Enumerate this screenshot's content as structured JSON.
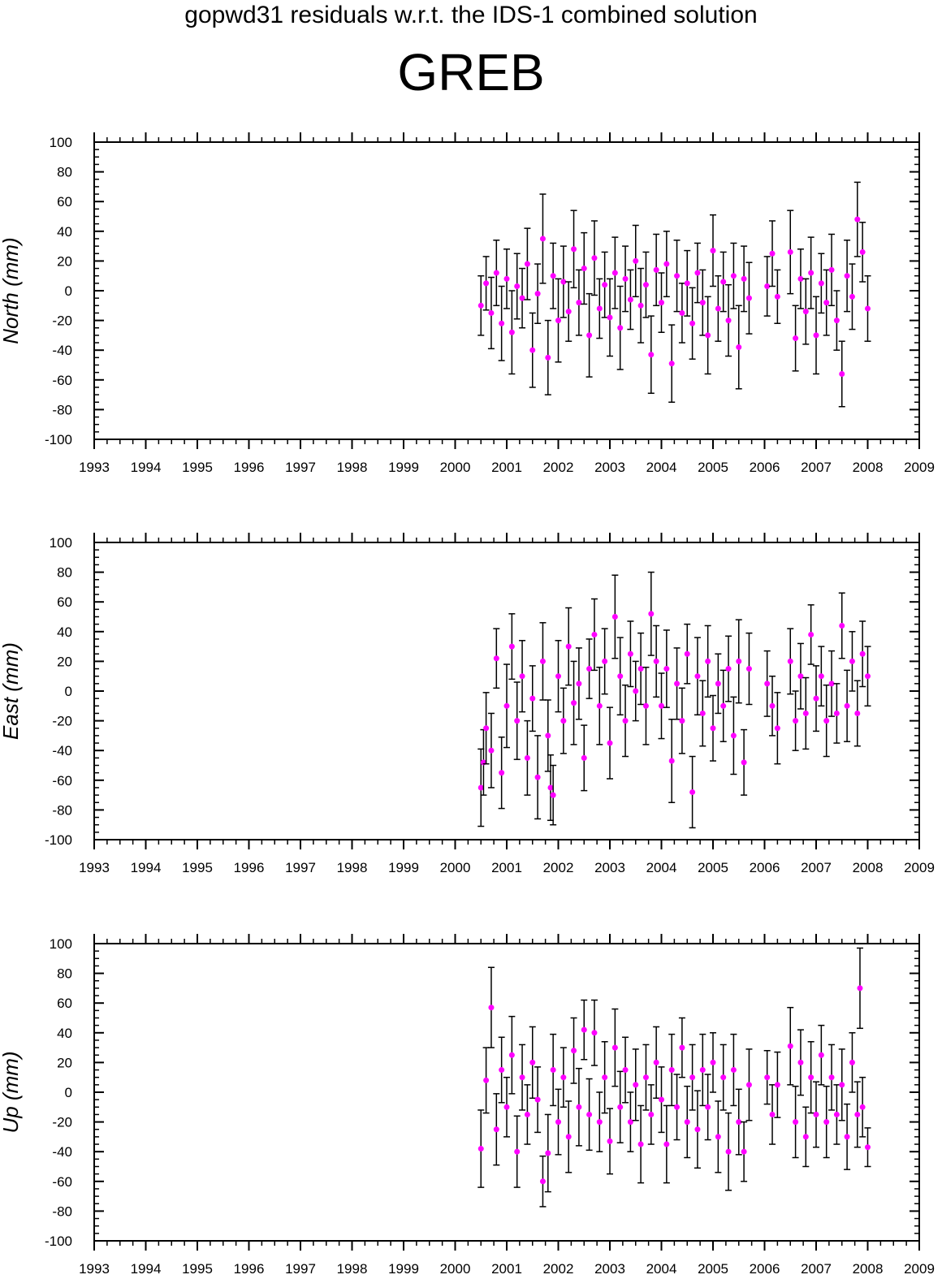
{
  "header": {
    "suptitle": "gopwd31 residuals w.r.t. the IDS-1 combined solution",
    "title": "GREB"
  },
  "colors": {
    "point": "#ff00ff",
    "errorbar": "#000000",
    "axes": "#000000"
  },
  "chart_data": [
    {
      "type": "scatter",
      "ylabel": "North (mm)",
      "xlim": [
        1993,
        2009
      ],
      "ylim": [
        -100,
        100
      ],
      "x_ticks": [
        "1993",
        "1994",
        "1995",
        "1996",
        "1997",
        "1998",
        "1999",
        "2000",
        "2001",
        "2002",
        "2003",
        "2004",
        "2005",
        "2006",
        "2007",
        "2008",
        "2009"
      ],
      "y_ticks": [
        "100",
        "80",
        "60",
        "40",
        "20",
        "0",
        "-20",
        "-40",
        "-60",
        "-80",
        "-100"
      ],
      "grid": false,
      "series": [
        {
          "x": [
            2000.5,
            2000.6,
            2000.7,
            2000.8,
            2000.9,
            2001.0,
            2001.1,
            2001.2,
            2001.3,
            2001.4,
            2001.5,
            2001.6,
            2001.7,
            2001.8,
            2001.9,
            2002.0,
            2002.1,
            2002.2,
            2002.3,
            2002.4,
            2002.5,
            2002.6,
            2002.7,
            2002.8,
            2002.9,
            2003.0,
            2003.1,
            2003.2,
            2003.3,
            2003.4,
            2003.5,
            2003.6,
            2003.7,
            2003.8,
            2003.9,
            2004.0,
            2004.1,
            2004.2,
            2004.3,
            2004.4,
            2004.5,
            2004.6,
            2004.7,
            2004.8,
            2004.9,
            2005.0,
            2005.1,
            2005.2,
            2005.3,
            2005.4,
            2005.5,
            2005.6,
            2005.7,
            2006.05,
            2006.15,
            2006.25,
            2006.5,
            2006.6,
            2006.7,
            2006.8,
            2006.9,
            2007.0,
            2007.1,
            2007.2,
            2007.3,
            2007.4,
            2007.5,
            2007.6,
            2007.7,
            2007.8,
            2007.9,
            2008.0
          ],
          "y": [
            -10,
            5,
            -15,
            12,
            -22,
            8,
            -28,
            3,
            -5,
            18,
            -40,
            -2,
            35,
            -45,
            10,
            -20,
            6,
            -14,
            28,
            -8,
            15,
            -30,
            22,
            -12,
            4,
            -18,
            12,
            -25,
            8,
            -6,
            20,
            -10,
            4,
            -43,
            14,
            -8,
            18,
            -49,
            10,
            -15,
            5,
            -22,
            12,
            -8,
            -30,
            27,
            -12,
            6,
            -20,
            10,
            -38,
            8,
            -5,
            3,
            25,
            -4,
            26,
            -32,
            8,
            -14,
            12,
            -30,
            5,
            -8,
            14,
            -20,
            -56,
            10,
            -4,
            48,
            26,
            -12
          ],
          "err": [
            20,
            18,
            24,
            22,
            25,
            20,
            28,
            22,
            20,
            24,
            25,
            20,
            30,
            25,
            22,
            28,
            24,
            20,
            26,
            22,
            24,
            28,
            25,
            20,
            22,
            26,
            24,
            28,
            22,
            20,
            24,
            25,
            22,
            26,
            24,
            20,
            22,
            26,
            24,
            20,
            22,
            24,
            20,
            22,
            26,
            24,
            22,
            20,
            24,
            22,
            28,
            22,
            24,
            20,
            22,
            18,
            28,
            22,
            20,
            22,
            24,
            26,
            20,
            22,
            24,
            20,
            22,
            24,
            22,
            25,
            20,
            22
          ]
        }
      ]
    },
    {
      "type": "scatter",
      "ylabel": "East (mm)",
      "xlim": [
        1993,
        2009
      ],
      "ylim": [
        -100,
        100
      ],
      "x_ticks": [
        "1993",
        "1994",
        "1995",
        "1996",
        "1997",
        "1998",
        "1999",
        "2000",
        "2001",
        "2002",
        "2003",
        "2004",
        "2005",
        "2006",
        "2007",
        "2008",
        "2009"
      ],
      "y_ticks": [
        "100",
        "80",
        "60",
        "40",
        "20",
        "0",
        "-20",
        "-40",
        "-60",
        "-80",
        "-100"
      ],
      "grid": false,
      "series": [
        {
          "x": [
            2000.5,
            2000.55,
            2000.6,
            2000.7,
            2000.8,
            2000.9,
            2001.0,
            2001.1,
            2001.2,
            2001.3,
            2001.4,
            2001.5,
            2001.6,
            2001.7,
            2001.8,
            2001.85,
            2001.9,
            2002.0,
            2002.1,
            2002.2,
            2002.3,
            2002.4,
            2002.5,
            2002.6,
            2002.7,
            2002.8,
            2002.9,
            2003.0,
            2003.1,
            2003.2,
            2003.3,
            2003.4,
            2003.5,
            2003.6,
            2003.7,
            2003.8,
            2003.9,
            2004.0,
            2004.1,
            2004.2,
            2004.3,
            2004.4,
            2004.5,
            2004.6,
            2004.7,
            2004.8,
            2004.9,
            2005.0,
            2005.1,
            2005.2,
            2005.3,
            2005.4,
            2005.5,
            2005.6,
            2005.7,
            2006.05,
            2006.15,
            2006.25,
            2006.5,
            2006.6,
            2006.7,
            2006.8,
            2006.9,
            2007.0,
            2007.1,
            2007.2,
            2007.3,
            2007.4,
            2007.5,
            2007.6,
            2007.7,
            2007.8,
            2007.9,
            2008.0
          ],
          "y": [
            -65,
            -48,
            -25,
            -40,
            22,
            -55,
            -10,
            30,
            -20,
            10,
            -45,
            -5,
            -58,
            20,
            -30,
            -65,
            -70,
            10,
            -20,
            30,
            -8,
            5,
            -45,
            15,
            38,
            -10,
            20,
            -35,
            50,
            10,
            -20,
            25,
            0,
            15,
            -10,
            52,
            20,
            -10,
            15,
            -47,
            5,
            -20,
            25,
            -68,
            10,
            -15,
            20,
            -25,
            5,
            -10,
            15,
            -30,
            20,
            -48,
            15,
            5,
            -10,
            -25,
            20,
            -20,
            10,
            -15,
            38,
            -5,
            10,
            -20,
            5,
            -15,
            44,
            -10,
            20,
            -15,
            25,
            10
          ],
          "err": [
            26,
            22,
            24,
            25,
            20,
            24,
            28,
            22,
            26,
            24,
            25,
            22,
            28,
            26,
            24,
            22,
            20,
            24,
            22,
            26,
            28,
            24,
            22,
            20,
            24,
            26,
            22,
            24,
            28,
            26,
            24,
            22,
            20,
            24,
            26,
            28,
            24,
            22,
            26,
            28,
            24,
            22,
            20,
            24,
            26,
            22,
            24,
            22,
            20,
            24,
            22,
            26,
            28,
            22,
            24,
            22,
            20,
            24,
            22,
            20,
            22,
            24,
            20,
            22,
            20,
            24,
            22,
            20,
            22,
            24,
            20,
            22,
            22,
            20
          ]
        }
      ]
    },
    {
      "type": "scatter",
      "ylabel": "Up (mm)",
      "xlim": [
        1993,
        2009
      ],
      "ylim": [
        -100,
        100
      ],
      "x_ticks": [
        "1993",
        "1994",
        "1995",
        "1996",
        "1997",
        "1998",
        "1999",
        "2000",
        "2001",
        "2002",
        "2003",
        "2004",
        "2005",
        "2006",
        "2007",
        "2008",
        "2009"
      ],
      "y_ticks": [
        "100",
        "80",
        "60",
        "40",
        "20",
        "0",
        "-20",
        "-40",
        "-60",
        "-80",
        "-100"
      ],
      "grid": false,
      "series": [
        {
          "x": [
            2000.5,
            2000.6,
            2000.7,
            2000.8,
            2000.9,
            2001.0,
            2001.1,
            2001.2,
            2001.3,
            2001.4,
            2001.5,
            2001.6,
            2001.7,
            2001.8,
            2001.9,
            2002.0,
            2002.1,
            2002.2,
            2002.3,
            2002.4,
            2002.5,
            2002.6,
            2002.7,
            2002.8,
            2002.9,
            2003.0,
            2003.1,
            2003.2,
            2003.3,
            2003.4,
            2003.5,
            2003.6,
            2003.7,
            2003.8,
            2003.9,
            2004.0,
            2004.1,
            2004.2,
            2004.3,
            2004.4,
            2004.5,
            2004.6,
            2004.7,
            2004.8,
            2004.9,
            2005.0,
            2005.1,
            2005.2,
            2005.3,
            2005.4,
            2005.5,
            2005.6,
            2005.7,
            2006.05,
            2006.15,
            2006.25,
            2006.5,
            2006.6,
            2006.7,
            2006.8,
            2006.9,
            2007.0,
            2007.1,
            2007.2,
            2007.3,
            2007.4,
            2007.5,
            2007.6,
            2007.7,
            2007.8,
            2007.85,
            2007.9,
            2008.0
          ],
          "y": [
            -38,
            8,
            57,
            -25,
            15,
            -10,
            25,
            -40,
            10,
            -15,
            20,
            -5,
            -60,
            -41,
            15,
            -20,
            10,
            -30,
            28,
            -10,
            42,
            -15,
            40,
            -20,
            10,
            -33,
            30,
            -10,
            15,
            -20,
            5,
            -35,
            10,
            -15,
            20,
            -5,
            -35,
            15,
            -10,
            30,
            -20,
            10,
            -25,
            15,
            -10,
            20,
            -30,
            10,
            -40,
            15,
            -20,
            -40,
            5,
            10,
            -15,
            5,
            31,
            -20,
            20,
            -30,
            10,
            -15,
            25,
            -20,
            10,
            -15,
            5,
            -30,
            20,
            -15,
            70,
            -10,
            -37
          ],
          "err": [
            26,
            22,
            27,
            24,
            22,
            20,
            26,
            24,
            22,
            20,
            24,
            22,
            17,
            26,
            24,
            22,
            20,
            24,
            22,
            26,
            20,
            24,
            22,
            20,
            24,
            22,
            26,
            24,
            22,
            20,
            24,
            26,
            22,
            20,
            24,
            22,
            26,
            24,
            22,
            20,
            24,
            22,
            26,
            24,
            22,
            20,
            24,
            22,
            26,
            24,
            22,
            20,
            24,
            18,
            20,
            22,
            26,
            24,
            22,
            20,
            24,
            22,
            20,
            24,
            22,
            20,
            24,
            22,
            20,
            22,
            27,
            20,
            13
          ]
        }
      ]
    }
  ]
}
